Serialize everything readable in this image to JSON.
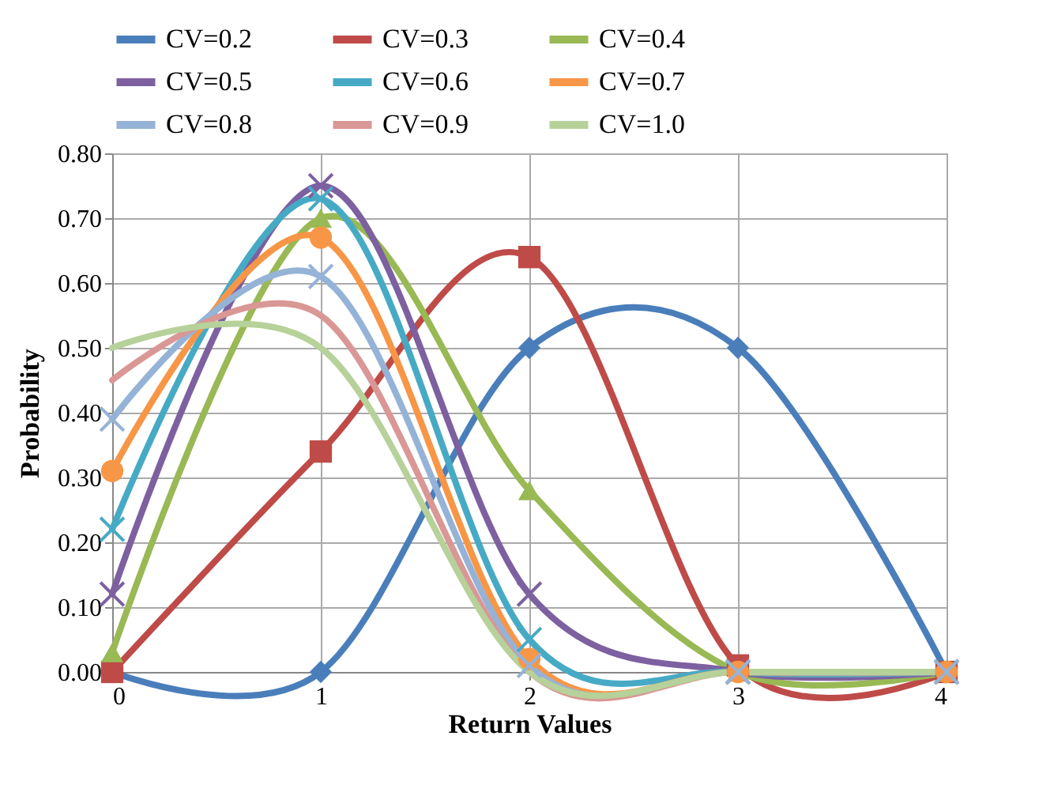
{
  "chart_data": {
    "type": "line",
    "xlabel": "Return Values",
    "ylabel": "Probability",
    "x": [
      0,
      1,
      2,
      3,
      4
    ],
    "xlim": [
      0,
      4
    ],
    "xticks": [
      0,
      1,
      2,
      3,
      4
    ],
    "ylim": [
      0,
      0.8
    ],
    "yticks": [
      {
        "value": 0,
        "label": "0.00"
      },
      {
        "value": 0.1,
        "label": "0.10"
      },
      {
        "value": 0.2,
        "label": "0.20"
      },
      {
        "value": 0.3,
        "label": "0.30"
      },
      {
        "value": 0.4,
        "label": "0.40"
      },
      {
        "value": 0.5,
        "label": "0.50"
      },
      {
        "value": 0.6,
        "label": "0.60"
      },
      {
        "value": 0.7,
        "label": "0.70"
      },
      {
        "value": 0.8,
        "label": "0.80"
      }
    ],
    "grid": true,
    "legend": "top",
    "series": [
      {
        "name": "CV=0.2",
        "color": "#4a7ebb",
        "marker": "diamond",
        "values": [
          0,
          0,
          0.5,
          0.5,
          0
        ]
      },
      {
        "name": "CV=0.3",
        "color": "#be4b48",
        "marker": "square",
        "values": [
          0,
          0.34,
          0.64,
          0.01,
          0
        ]
      },
      {
        "name": "CV=0.4",
        "color": "#98b954",
        "marker": "triangle",
        "values": [
          0.03,
          0.7,
          0.28,
          0,
          0
        ]
      },
      {
        "name": "CV=0.5",
        "color": "#7d60a0",
        "marker": "cross",
        "values": [
          0.12,
          0.75,
          0.12,
          0,
          0
        ]
      },
      {
        "name": "CV=0.6",
        "color": "#46aac5",
        "marker": "cross",
        "values": [
          0.22,
          0.73,
          0.05,
          0,
          0
        ]
      },
      {
        "name": "CV=0.7",
        "color": "#f79646",
        "marker": "circle",
        "values": [
          0.31,
          0.67,
          0.02,
          0,
          0
        ]
      },
      {
        "name": "CV=0.8",
        "color": "#95b3d7",
        "marker": "cross",
        "values": [
          0.39,
          0.61,
          0.01,
          0,
          0
        ]
      },
      {
        "name": "CV=0.9",
        "color": "#d99795",
        "marker": "none",
        "values": [
          0.45,
          0.55,
          0,
          0,
          0
        ]
      },
      {
        "name": "CV=1.0",
        "color": "#b7d19a",
        "marker": "none",
        "values": [
          0.5,
          0.5,
          0,
          0,
          0
        ]
      }
    ]
  }
}
